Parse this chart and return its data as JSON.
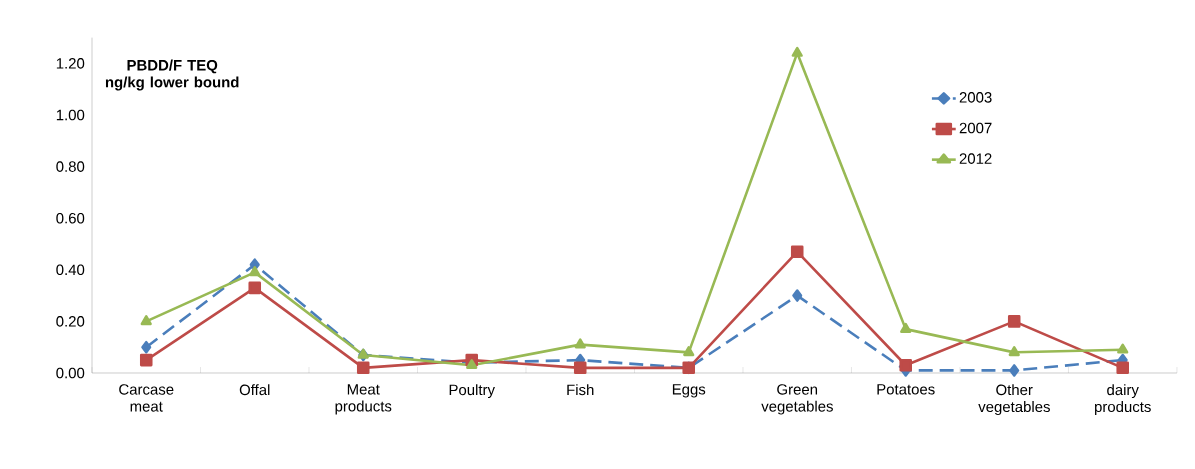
{
  "chart_data": {
    "type": "line",
    "ylabel": "PBDD/F TEQ  ng/kg lower bound",
    "categories": [
      "Carcase meat",
      "Offal",
      "Meat products",
      "Poultry",
      "Fish",
      "Eggs",
      "Green vegetables",
      "Potatoes",
      "Other vegetables",
      "dairy products"
    ],
    "series": [
      {
        "name": "2003",
        "color": "#4a7ebb",
        "marker": "diamond",
        "line_style": "dashed",
        "values": [
          0.1,
          0.42,
          0.07,
          0.04,
          0.05,
          0.02,
          0.3,
          0.01,
          0.01,
          0.05
        ]
      },
      {
        "name": "2007",
        "color": "#be4b48",
        "marker": "square",
        "line_style": "solid",
        "values": [
          0.05,
          0.33,
          0.02,
          0.05,
          0.02,
          0.02,
          0.47,
          0.03,
          0.2,
          0.02
        ]
      },
      {
        "name": "2012",
        "color": "#98b954",
        "marker": "triangle",
        "line_style": "solid",
        "values": [
          0.2,
          0.39,
          0.07,
          0.03,
          0.11,
          0.08,
          1.24,
          0.17,
          0.08,
          0.09
        ]
      }
    ],
    "ylim": [
      0,
      1.3
    ],
    "yticks": [
      {
        "value": 0,
        "label": "0.00"
      },
      {
        "value": 0.2,
        "label": "0.20"
      },
      {
        "value": 0.4,
        "label": "0.40"
      },
      {
        "value": 0.6,
        "label": "0.60"
      },
      {
        "value": 0.8,
        "label": "0.80"
      },
      {
        "value": 1.0,
        "label": "1.00"
      },
      {
        "value": 1.2,
        "label": "1.20"
      }
    ],
    "grid": false,
    "legend": "top right"
  }
}
